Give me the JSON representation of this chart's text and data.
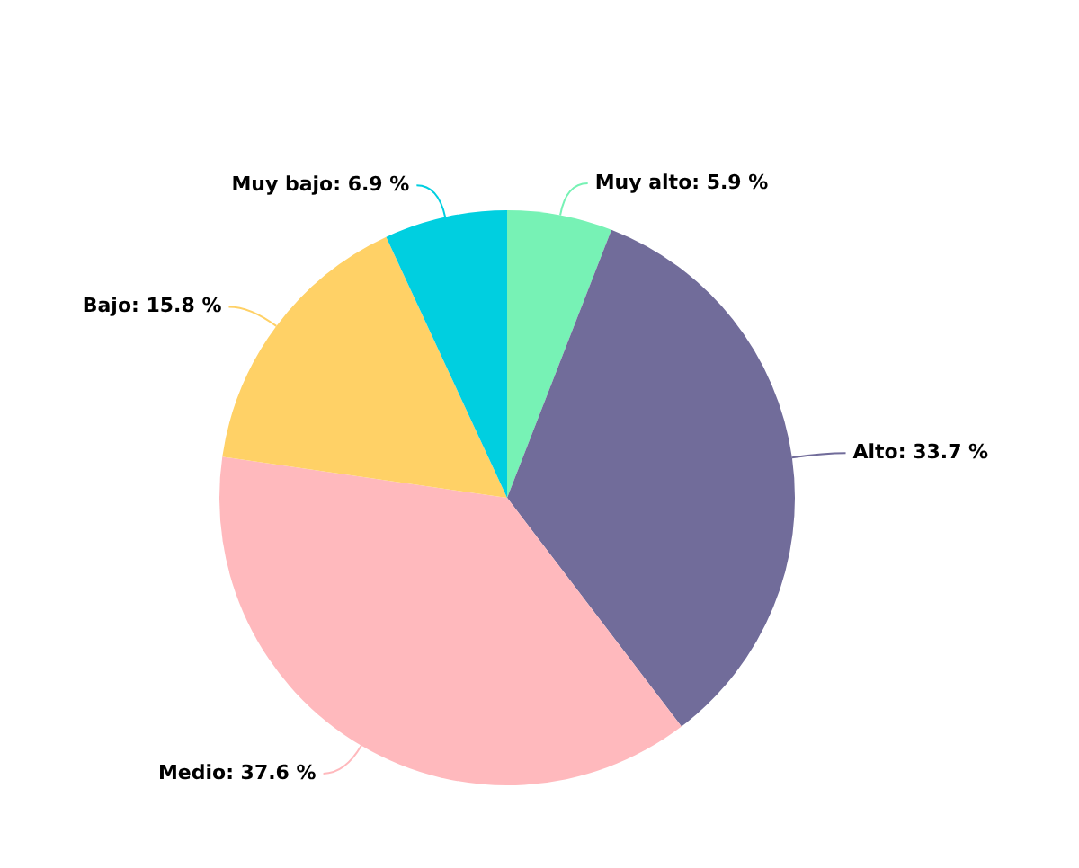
{
  "chart_data": {
    "type": "pie",
    "categories": [
      "Muy alto",
      "Alto",
      "Medio",
      "Bajo",
      "Muy bajo"
    ],
    "values": [
      5.9,
      33.7,
      37.6,
      15.8,
      6.9
    ],
    "value_labels": [
      "5.9 %",
      "33.7 %",
      "37.6 %",
      "15.8 %",
      "6.9 %"
    ],
    "colors": [
      "#77f2b5",
      "#716c9a",
      "#ffb9bd",
      "#ffd166",
      "#00cfe0"
    ],
    "legend": false
  }
}
